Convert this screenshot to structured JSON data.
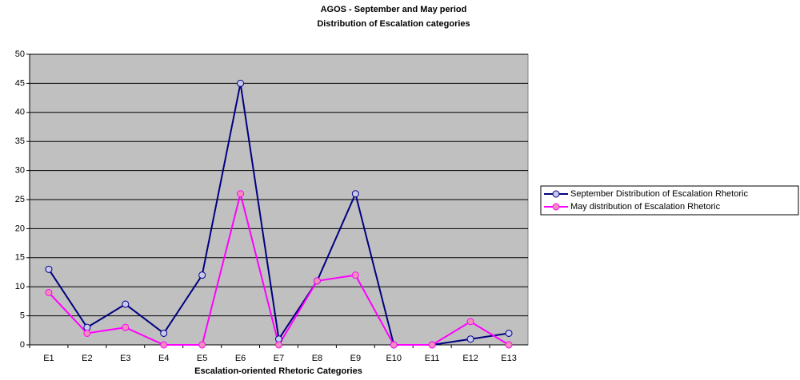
{
  "chart_data": {
    "type": "line",
    "title": [
      "AGOS - September and May period",
      "Distribution of Escalation categories"
    ],
    "x_label": "Escalation-oriented Rhetoric Categories",
    "categories": [
      "E1",
      "E2",
      "E3",
      "E4",
      "E5",
      "E6",
      "E7",
      "E8",
      "E9",
      "E10",
      "E11",
      "E12",
      "E13"
    ],
    "series": [
      {
        "name": "September Distribution of Escalation Rhetoric",
        "color": "#000080",
        "marker_color": "#c8c8f0",
        "values": [
          13,
          3,
          7,
          2,
          12,
          45,
          1,
          11,
          26,
          0,
          0,
          1,
          2
        ]
      },
      {
        "name": "May distribution of Escalation Rhetoric",
        "color": "#ff00ff",
        "marker_color": "#f090b8",
        "values": [
          9,
          2,
          3,
          0,
          0,
          26,
          0,
          11,
          12,
          0,
          0,
          4,
          0
        ]
      }
    ],
    "ylim": [
      0,
      50
    ],
    "yticks": [
      0,
      5,
      10,
      15,
      20,
      25,
      30,
      35,
      40,
      45,
      50
    ],
    "grid": true,
    "plot_background": "#c0c0c0",
    "legend": "right"
  }
}
